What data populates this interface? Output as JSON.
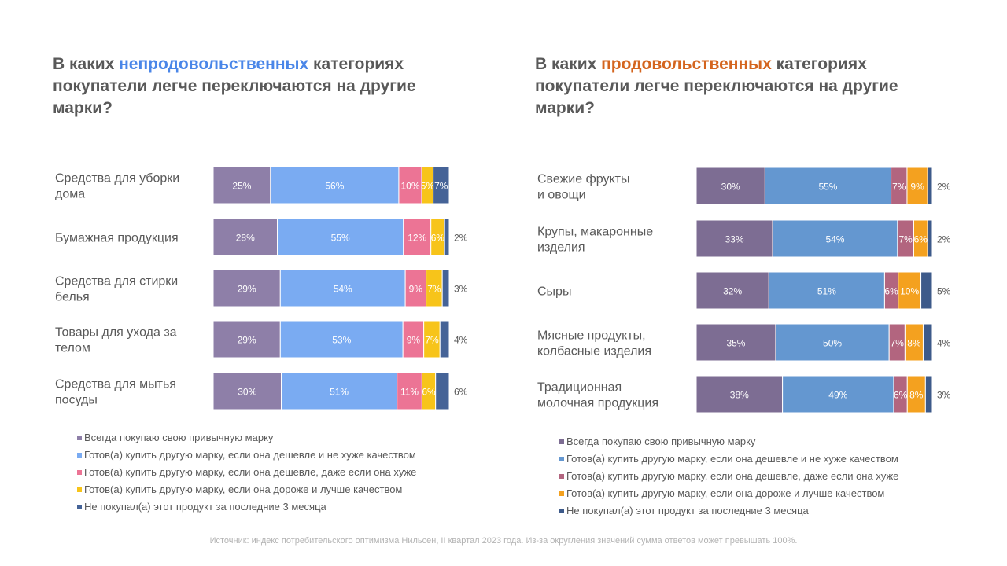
{
  "left_panel": {
    "title_before": "В каких ",
    "title_highlight": "непродовольственных",
    "title_after": " категориях покупатели легче переключаются на другие марки?",
    "highlight_color": "#4a86e8"
  },
  "right_panel": {
    "title_before": "В каких ",
    "title_highlight": "продовольственных",
    "title_after": " категориях покупатели легче переключаются на другие марки?",
    "highlight_color": "#d4651f"
  },
  "footer": "Источник: индекс потребительского оптимизма Нильсен, II квартал 2023 года. Из-за округления значений сумма ответов может превышать 100%.",
  "chart_data": [
    {
      "type": "bar",
      "orientation": "horizontal-stacked-100",
      "categories": [
        "Средства для уборки дома",
        "Бумажная продукция",
        "Средства для стирки белья",
        "Товары для ухода за телом",
        "Средства для мытья посуды"
      ],
      "category_lines": [
        [
          "Средства для уборки",
          "дома"
        ],
        [
          "Бумажная продукция"
        ],
        [
          "Средства для стирки",
          "белья"
        ],
        [
          "Товары для ухода за",
          "телом"
        ],
        [
          "Средства для мытья",
          "посуды"
        ]
      ],
      "series": [
        {
          "name": "Всегда покупаю свою привычную марку",
          "color": "#8e7fa8",
          "values": [
            25,
            28,
            29,
            29,
            30
          ]
        },
        {
          "name": "Готов(а) купить другую марку, если она дешевле и не хуже качеством",
          "color": "#7aabf2",
          "values": [
            56,
            55,
            54,
            53,
            51
          ]
        },
        {
          "name": "Готов(а) купить другую марку, если она дешевле, даже если она хуже",
          "color": "#ec7495",
          "values": [
            10,
            12,
            9,
            9,
            11
          ]
        },
        {
          "name": "Готов(а) купить другую марку, если она дороже и лучше качеством",
          "color": "#f7c41a",
          "values": [
            5,
            6,
            7,
            7,
            6
          ]
        },
        {
          "name": "Не покупал(а) этот продукт за последние 3 месяца",
          "color": "#456397",
          "values": [
            7,
            2,
            3,
            4,
            6
          ]
        }
      ],
      "outside_last": [
        false,
        true,
        true,
        true,
        true
      ],
      "legend_position": "bottom"
    },
    {
      "type": "bar",
      "orientation": "horizontal-stacked-100",
      "categories": [
        "Свежие фрукты и овощи",
        "Крупы, макаронные изделия",
        "Сыры",
        "Мясные продукты, колбасные изделия",
        "Традиционная молочная продукция"
      ],
      "category_lines": [
        [
          "Свежие фрукты",
          "и овощи"
        ],
        [
          "Крупы, макаронные",
          "изделия"
        ],
        [
          "Сыры"
        ],
        [
          "Мясные продукты,",
          "колбасные изделия"
        ],
        [
          "Традиционная",
          "молочная продукция"
        ]
      ],
      "series": [
        {
          "name": "Всегда покупаю свою привычную марку",
          "color": "#7d6d93",
          "values": [
            30,
            33,
            32,
            35,
            38
          ]
        },
        {
          "name": "Готов(а) купить другую марку, если она дешевле и не хуже качеством",
          "color": "#6497d0",
          "values": [
            55,
            54,
            51,
            50,
            49
          ]
        },
        {
          "name": "Готов(а) купить другую марку, если она дешевле, даже если она хуже",
          "color": "#b2657f",
          "values": [
            7,
            7,
            6,
            7,
            6
          ]
        },
        {
          "name": "Готов(а) купить другую марку, если она дороже и лучше качеством",
          "color": "#f4a11f",
          "values": [
            9,
            6,
            10,
            8,
            8
          ]
        },
        {
          "name": "Не покупал(а) этот продукт за последние 3 месяца",
          "color": "#3d5a8a",
          "values": [
            2,
            2,
            5,
            4,
            3
          ]
        }
      ],
      "outside_last": [
        true,
        true,
        true,
        true,
        true
      ],
      "legend_position": "bottom"
    }
  ]
}
